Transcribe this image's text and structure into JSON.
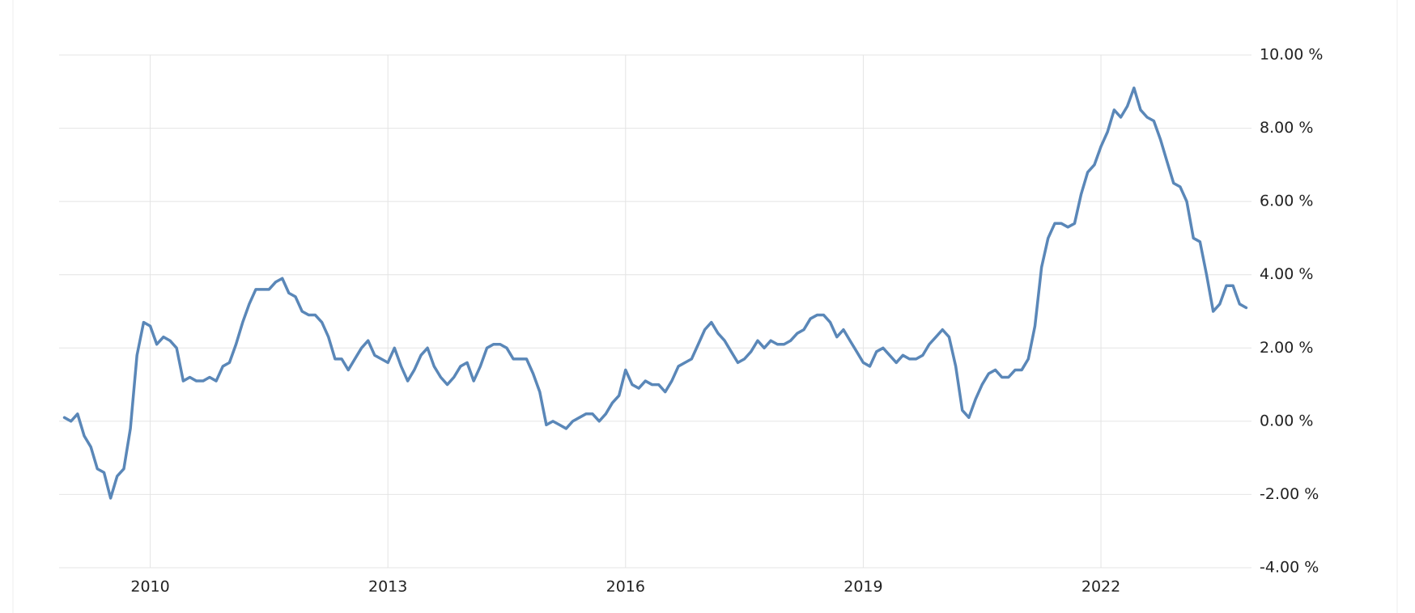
{
  "chart_data": {
    "type": "line",
    "x": [
      2008.917,
      2009,
      2009.083,
      2009.167,
      2009.25,
      2009.333,
      2009.417,
      2009.5,
      2009.583,
      2009.667,
      2009.75,
      2009.833,
      2009.917,
      2010,
      2010.083,
      2010.167,
      2010.25,
      2010.333,
      2010.417,
      2010.5,
      2010.583,
      2010.667,
      2010.75,
      2010.833,
      2010.917,
      2011,
      2011.083,
      2011.167,
      2011.25,
      2011.333,
      2011.417,
      2011.5,
      2011.583,
      2011.667,
      2011.75,
      2011.833,
      2011.917,
      2012,
      2012.083,
      2012.167,
      2012.25,
      2012.333,
      2012.417,
      2012.5,
      2012.583,
      2012.667,
      2012.75,
      2012.833,
      2012.917,
      2013,
      2013.083,
      2013.167,
      2013.25,
      2013.333,
      2013.417,
      2013.5,
      2013.583,
      2013.667,
      2013.75,
      2013.833,
      2013.917,
      2014,
      2014.083,
      2014.167,
      2014.25,
      2014.333,
      2014.417,
      2014.5,
      2014.583,
      2014.667,
      2014.75,
      2014.833,
      2014.917,
      2015,
      2015.083,
      2015.167,
      2015.25,
      2015.333,
      2015.417,
      2015.5,
      2015.583,
      2015.667,
      2015.75,
      2015.833,
      2015.917,
      2016,
      2016.083,
      2016.167,
      2016.25,
      2016.333,
      2016.417,
      2016.5,
      2016.583,
      2016.667,
      2016.75,
      2016.833,
      2016.917,
      2017,
      2017.083,
      2017.167,
      2017.25,
      2017.333,
      2017.417,
      2017.5,
      2017.583,
      2017.667,
      2017.75,
      2017.833,
      2017.917,
      2018,
      2018.083,
      2018.167,
      2018.25,
      2018.333,
      2018.417,
      2018.5,
      2018.583,
      2018.667,
      2018.75,
      2018.833,
      2018.917,
      2019,
      2019.083,
      2019.167,
      2019.25,
      2019.333,
      2019.417,
      2019.5,
      2019.583,
      2019.667,
      2019.75,
      2019.833,
      2019.917,
      2020,
      2020.083,
      2020.167,
      2020.25,
      2020.333,
      2020.417,
      2020.5,
      2020.583,
      2020.667,
      2020.75,
      2020.833,
      2020.917,
      2021,
      2021.083,
      2021.167,
      2021.25,
      2021.333,
      2021.417,
      2021.5,
      2021.583,
      2021.667,
      2021.75,
      2021.833,
      2021.917,
      2022,
      2022.083,
      2022.167,
      2022.25,
      2022.333,
      2022.417,
      2022.5,
      2022.583,
      2022.667,
      2022.75,
      2022.833,
      2022.917,
      2023,
      2023.083,
      2023.167,
      2023.25,
      2023.333,
      2023.417,
      2023.5,
      2023.583,
      2023.667,
      2023.75,
      2023.833
    ],
    "series": [
      {
        "color": "#5a87b8",
        "values": [
          0.1,
          0.0,
          0.2,
          -0.4,
          -0.7,
          -1.3,
          -1.4,
          -2.1,
          -1.5,
          -1.3,
          -0.2,
          1.8,
          2.7,
          2.6,
          2.1,
          2.3,
          2.2,
          2.0,
          1.1,
          1.2,
          1.1,
          1.1,
          1.2,
          1.1,
          1.5,
          1.6,
          2.1,
          2.7,
          3.2,
          3.6,
          3.6,
          3.6,
          3.8,
          3.9,
          3.5,
          3.4,
          3.0,
          2.9,
          2.9,
          2.7,
          2.3,
          1.7,
          1.7,
          1.4,
          1.7,
          2.0,
          2.2,
          1.8,
          1.7,
          1.6,
          2.0,
          1.5,
          1.1,
          1.4,
          1.8,
          2.0,
          1.5,
          1.2,
          1.0,
          1.2,
          1.5,
          1.6,
          1.1,
          1.5,
          2.0,
          2.1,
          2.1,
          2.0,
          1.7,
          1.7,
          1.7,
          1.3,
          0.8,
          -0.1,
          0.0,
          -0.1,
          -0.2,
          0.0,
          0.1,
          0.2,
          0.2,
          0.0,
          0.2,
          0.5,
          0.7,
          1.4,
          1.0,
          0.9,
          1.1,
          1.0,
          1.0,
          0.8,
          1.1,
          1.5,
          1.6,
          1.7,
          2.1,
          2.5,
          2.7,
          2.4,
          2.2,
          1.9,
          1.6,
          1.7,
          1.9,
          2.2,
          2.0,
          2.2,
          2.1,
          2.1,
          2.2,
          2.4,
          2.5,
          2.8,
          2.9,
          2.9,
          2.7,
          2.3,
          2.5,
          2.2,
          1.9,
          1.6,
          1.5,
          1.9,
          2.0,
          1.8,
          1.6,
          1.8,
          1.7,
          1.7,
          1.8,
          2.1,
          2.3,
          2.5,
          2.3,
          1.5,
          0.3,
          0.1,
          0.6,
          1.0,
          1.3,
          1.4,
          1.2,
          1.2,
          1.4,
          1.4,
          1.7,
          2.6,
          4.2,
          5.0,
          5.4,
          5.4,
          5.3,
          5.4,
          6.2,
          6.8,
          7.0,
          7.5,
          7.9,
          8.5,
          8.3,
          8.6,
          9.1,
          8.5,
          8.3,
          8.2,
          7.7,
          7.1,
          6.5,
          6.4,
          6.0,
          5.0,
          4.9,
          4.0,
          3.0,
          3.2,
          3.7,
          3.7,
          3.2,
          3.1
        ]
      }
    ],
    "xlim": [
      2008.85,
      2023.9
    ],
    "xticks": [
      2010,
      2013,
      2016,
      2019,
      2022
    ],
    "ylim": [
      -4,
      10
    ],
    "yticks": [
      {
        "value": -4,
        "label": "-4.00 %"
      },
      {
        "value": -2,
        "label": "-2.00 %"
      },
      {
        "value": 0,
        "label": "0.00 %"
      },
      {
        "value": 2,
        "label": "2.00 %"
      },
      {
        "value": 4,
        "label": "4.00 %"
      },
      {
        "value": 6,
        "label": "6.00 %"
      },
      {
        "value": 8,
        "label": "8.00 %"
      },
      {
        "value": 10,
        "label": "10.00 %"
      }
    ],
    "grid": true
  }
}
